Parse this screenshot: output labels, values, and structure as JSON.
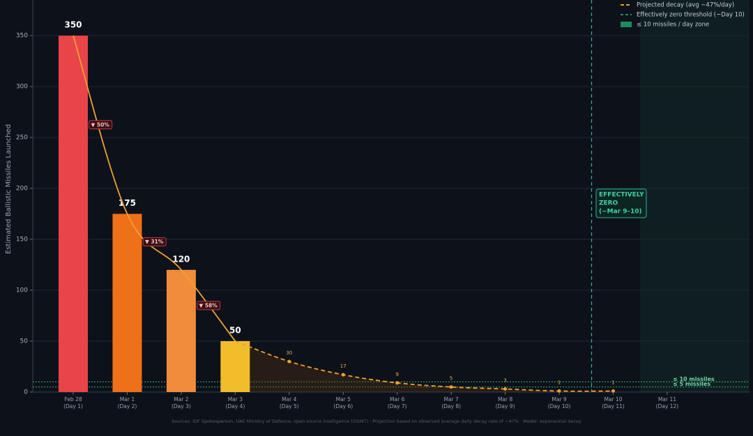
{
  "chart_data": {
    "type": "bar",
    "y_label": "Estimated Ballistic Missiles Launched",
    "categories": [
      "Feb 28",
      "Mar 1",
      "Mar 2",
      "Mar 3",
      "Mar 4",
      "Mar 5",
      "Mar 6",
      "Mar 7",
      "Mar 8",
      "Mar 9",
      "Mar 10",
      "Mar 11"
    ],
    "category_days": [
      "(Day 1)",
      "(Day 2)",
      "(Day 3)",
      "(Day 4)",
      "(Day 5)",
      "(Day 6)",
      "(Day 7)",
      "(Day 8)",
      "(Day 9)",
      "(Day 10)",
      "(Day 11)",
      "(Day 12)"
    ],
    "values": [
      350,
      175,
      120,
      50,
      null,
      null,
      null,
      null,
      null,
      null,
      null,
      null
    ],
    "colors": [
      "#e8444a",
      "#ee7019",
      "#f08c3c",
      "#f1bd2b"
    ],
    "drop_labels": [
      "▼ 50%",
      "▼ 31%",
      "▼ 58%"
    ],
    "projection": {
      "name": "Projected decay (avg −47%/day)",
      "color": "#f0a030",
      "values": [
        null,
        null,
        null,
        50,
        30,
        17,
        9,
        5,
        3,
        1,
        1,
        null
      ]
    },
    "threshold": {
      "name": "Effectively zero threshold (~Day 10)",
      "color": "#2bb39a",
      "x": 9.6
    },
    "zone": {
      "name": "≤ 10 missiles / day zone",
      "color": "#1e8a5e",
      "x_start": 10.5
    },
    "reference_lines": [
      {
        "value": 10,
        "label": "≤ 10 missiles"
      },
      {
        "value": 5,
        "label": "≤ 5 missiles"
      }
    ],
    "annotation": [
      "EFFECTIVELY",
      "ZERO",
      "(~Mar 9–10)"
    ],
    "ylim": [
      0,
      385
    ],
    "yticks": [
      0,
      50,
      100,
      150,
      200,
      250,
      300,
      350
    ],
    "grid": true,
    "legend": "upper right",
    "footer": "Sources: IDF Spokesperson, UAE Ministry of Defence, open-source intelligence (OSINT)  ·  Projection based on observed average daily decay rate of ~47%  ·  Model: exponential decay"
  }
}
